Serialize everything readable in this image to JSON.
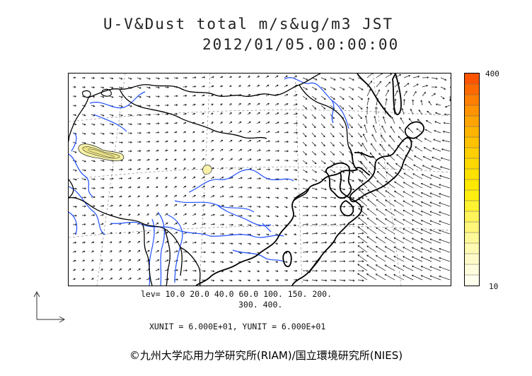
{
  "title": {
    "line1": "U-V&Dust total m/s&ug/m3 JST",
    "line2": "2012/01/05.00:00:00"
  },
  "colorbar": {
    "max_label": "400",
    "min_label": "10",
    "colors": [
      "#ff5500",
      "#ff6a00",
      "#ff7f00",
      "#ff9300",
      "#ffa400",
      "#ffb400",
      "#ffc200",
      "#ffcf00",
      "#ffd800",
      "#ffe100",
      "#ffe800",
      "#ffee10",
      "#fff230",
      "#fff45a",
      "#fff67a",
      "#fff898",
      "#fffab2",
      "#fffbc8",
      "#fffddc",
      "#ffffee"
    ]
  },
  "contour_levels": {
    "line1": "lev= 10.0 20.0 40.0 60.0 100. 150. 200.",
    "line2": "300. 400."
  },
  "units": {
    "text": "XUNIT = 6.000E+01, YUNIT = 6.000E+01"
  },
  "credit": {
    "text": "©九州大学応用力学研究所(RIAM)/国立環境研究所(NIES)"
  },
  "colors": {
    "rivers": "#1f4fff",
    "coast": "#000000",
    "borders": "#000000",
    "grid": "#666666",
    "vectors": "#111111",
    "dust_outer": "#f7f2a8",
    "dust_inner": "#e9e08a"
  }
}
